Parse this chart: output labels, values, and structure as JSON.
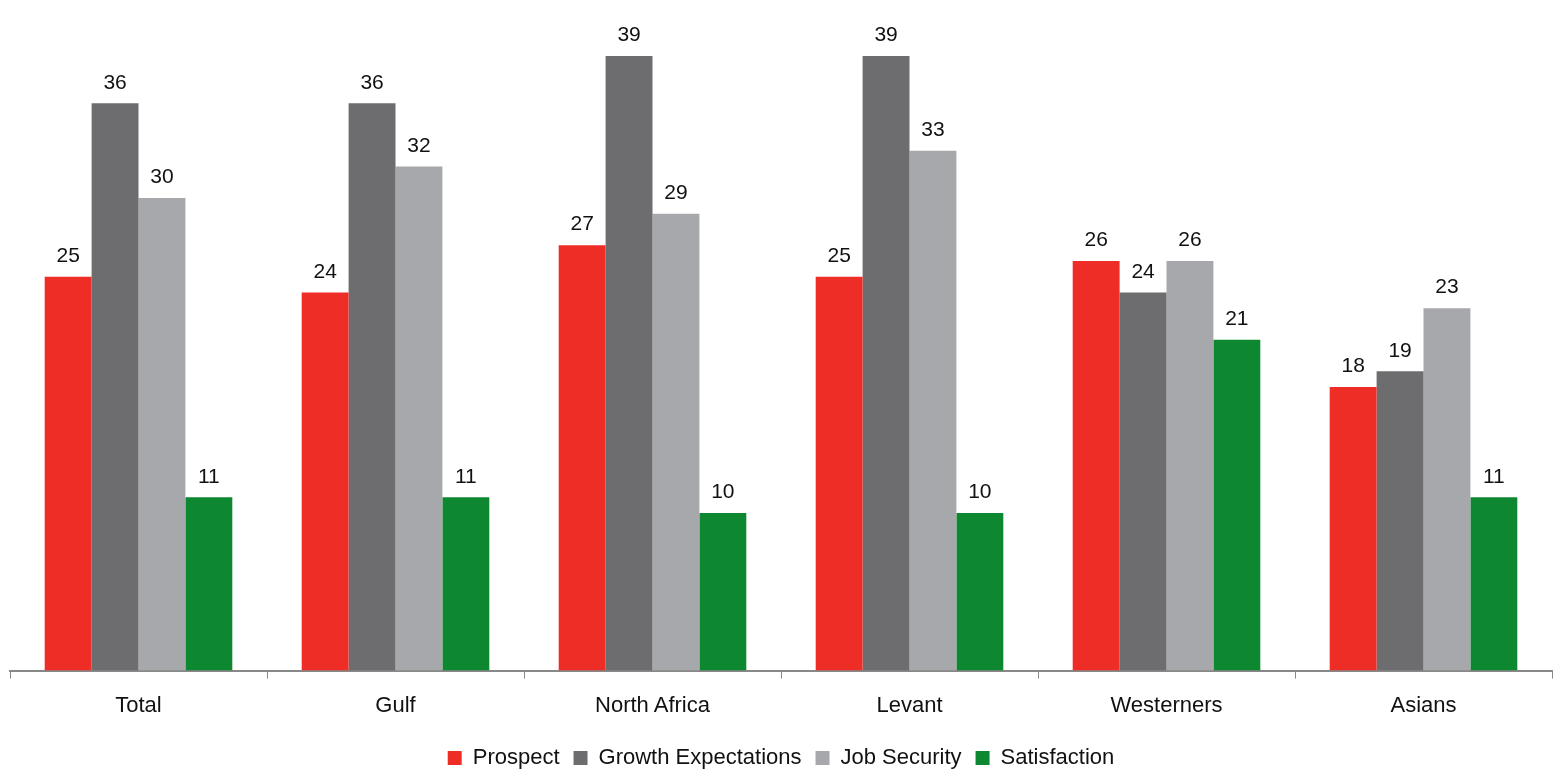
{
  "chart_data": {
    "type": "bar",
    "categories": [
      "Total",
      "Gulf",
      "North Africa",
      "Levant",
      "Westerners",
      "Asians"
    ],
    "series": [
      {
        "name": "Prospect",
        "color": "#ee2d27",
        "values": [
          25,
          24,
          27,
          25,
          26,
          18
        ]
      },
      {
        "name": "Growth Expectations",
        "color": "#6d6d6f",
        "values": [
          36,
          36,
          39,
          39,
          24,
          19
        ]
      },
      {
        "name": "Job Security",
        "color": "#a7a8ab",
        "values": [
          30,
          32,
          29,
          33,
          26,
          23
        ]
      },
      {
        "name": "Satisfaction",
        "color": "#0e8731",
        "values": [
          11,
          11,
          10,
          10,
          21,
          11
        ]
      }
    ],
    "data_labels": true,
    "legend": "bottom",
    "grid": false
  }
}
